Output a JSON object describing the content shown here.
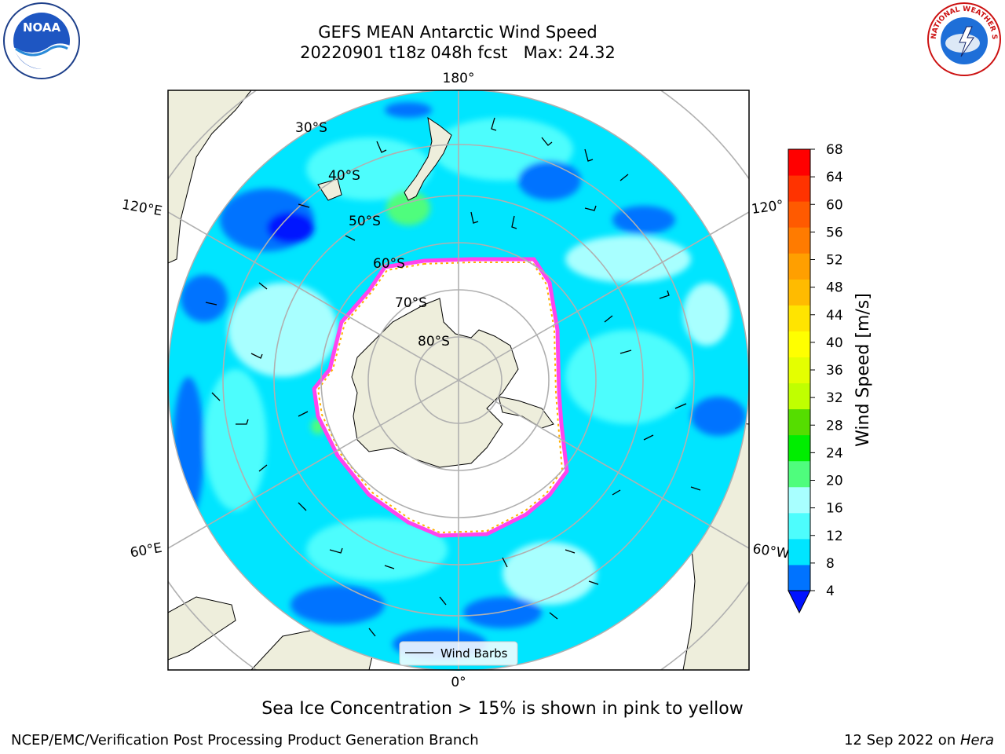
{
  "header": {
    "title_line1": "GEFS MEAN Antarctic Wind Speed",
    "title_line2": "20220901 t18z 048h fcst   Max: 24.32"
  },
  "logos": {
    "left": {
      "icon": "noaa-logo",
      "text": "NOAA"
    },
    "right": {
      "icon": "national-weather-service-logo",
      "text": "NATIONAL WEATHER SERVICE"
    }
  },
  "map": {
    "projection": "south-polar-stereographic",
    "longitude_labels": {
      "top": "180°",
      "bottom": "0°",
      "left_upper": "120°E",
      "left_lower": "60°E",
      "right_upper": "120°",
      "right_lower": "60°W"
    },
    "latitude_labels": [
      "30°S",
      "40°S",
      "50°S",
      "60°S",
      "70°S",
      "80°S"
    ],
    "legend_label": "Wind Barbs",
    "colors": {
      "land": "#eeeedc",
      "ice_edge": "#ff44ee",
      "ice_inner": "#ffb000",
      "grid": "#b0b0b0"
    }
  },
  "colorbar": {
    "label": "Wind Speed [m/s]",
    "ticks": [
      "4",
      "8",
      "12",
      "16",
      "20",
      "24",
      "28",
      "32",
      "36",
      "40",
      "44",
      "48",
      "52",
      "56",
      "60",
      "64",
      "68"
    ],
    "colors": [
      "#0073ff",
      "#00e5ff",
      "#4dfdfd",
      "#a8ffff",
      "#4ffd7d",
      "#00ee00",
      "#55dd00",
      "#c0ff00",
      "#e4ff00",
      "#ffff00",
      "#ffe400",
      "#ffbb00",
      "#ff9f00",
      "#ff7b00",
      "#ff5a00",
      "#ff3300",
      "#ff0000"
    ],
    "underflow_color": "#0013ff"
  },
  "footer": {
    "note": "Sea Ice Concentration > 15% is shown in pink to yellow",
    "credit_left": "NCEP/EMC/Verification Post Processing Product Generation Branch",
    "date": "12 Sep 2022 on ",
    "machine": "Hera"
  }
}
